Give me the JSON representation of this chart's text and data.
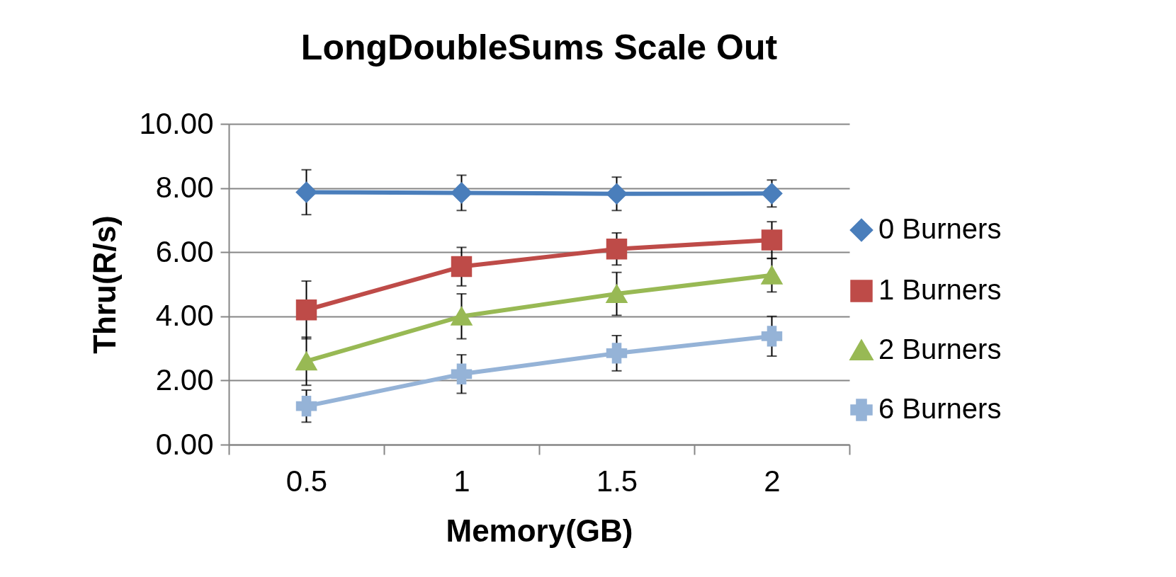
{
  "chart_data": {
    "type": "line",
    "title": "LongDoubleSums Scale Out",
    "xlabel": "Memory(GB)",
    "ylabel": "Thru(R/s)",
    "categories": [
      "0.5",
      "1",
      "1.5",
      "2"
    ],
    "series": [
      {
        "name": "0 Burners",
        "color": "#4a7ebb",
        "marker": "diamond",
        "values": [
          7.87,
          7.85,
          7.82,
          7.83
        ],
        "errors": [
          0.7,
          0.55,
          0.52,
          0.42
        ]
      },
      {
        "name": "1 Burners",
        "color": "#be4b48",
        "marker": "square",
        "values": [
          4.2,
          5.55,
          6.1,
          6.38
        ],
        "errors": [
          0.9,
          0.6,
          0.5,
          0.57
        ]
      },
      {
        "name": "2 Burners",
        "color": "#98b954",
        "marker": "triangle",
        "values": [
          2.6,
          4.0,
          4.7,
          5.28
        ],
        "errors": [
          0.75,
          0.7,
          0.67,
          0.52
        ]
      },
      {
        "name": "6 Burners",
        "color": "#95b3d7",
        "marker": "cross",
        "values": [
          1.2,
          2.2,
          2.85,
          3.38
        ],
        "errors": [
          0.5,
          0.6,
          0.55,
          0.62
        ]
      }
    ],
    "ylim": [
      0,
      10
    ],
    "yticks": [
      {
        "value": 0,
        "label": "0.00"
      },
      {
        "value": 2,
        "label": "2.00"
      },
      {
        "value": 4,
        "label": "4.00"
      },
      {
        "value": 6,
        "label": "6.00"
      },
      {
        "value": 8,
        "label": "8.00"
      },
      {
        "value": 10,
        "label": "10.00"
      }
    ],
    "grid": "y",
    "legend": "right",
    "line_style": "solid"
  }
}
